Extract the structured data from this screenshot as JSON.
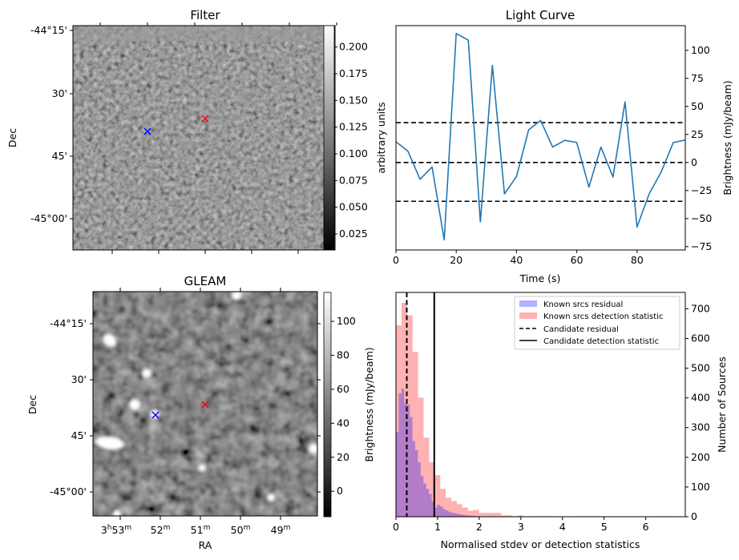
{
  "figure": {
    "panels": {
      "filter": {
        "title": "Filter",
        "ylabel": "Dec",
        "dec_ticks": [
          "-44°15'",
          "30'",
          "45'",
          "-45°00'"
        ],
        "colorbar": {
          "label": "arbitrary units",
          "ticks": [
            "0.025",
            "0.050",
            "0.075",
            "0.100",
            "0.125",
            "0.150",
            "0.175",
            "0.200"
          ],
          "range": [
            0.01,
            0.22
          ]
        },
        "markers": [
          {
            "name": "candidate",
            "color": "#ff0000",
            "symbol": "x"
          },
          {
            "name": "known-source",
            "color": "#0000ff",
            "symbol": "x"
          }
        ]
      },
      "gleam": {
        "title": "GLEAM",
        "ylabel": "Dec",
        "xlabel": "RA",
        "dec_ticks": [
          "-44°15'",
          "30'",
          "45'",
          "-45°00'"
        ],
        "ra_ticks": [
          {
            "h": "3",
            "m": "53"
          },
          {
            "h": "",
            "m": "52"
          },
          {
            "h": "",
            "m": "51"
          },
          {
            "h": "",
            "m": "50"
          },
          {
            "h": "",
            "m": "49"
          }
        ],
        "colorbar": {
          "label": "Brightness (mJy/beam)",
          "ticks": [
            "0",
            "20",
            "40",
            "60",
            "80",
            "100"
          ],
          "range": [
            -15,
            117
          ]
        },
        "markers": [
          {
            "name": "candidate",
            "color": "#ff0000",
            "symbol": "x"
          },
          {
            "name": "known-source",
            "color": "#0000ff",
            "symbol": "x"
          }
        ]
      }
    }
  },
  "chart_data": [
    {
      "type": "line",
      "title": "Light Curve",
      "xlabel": "Time (s)",
      "ylabel": "Brightness (mJy/beam)",
      "ylabel_side": "right",
      "xlim": [
        0,
        96
      ],
      "ylim": [
        -78,
        122
      ],
      "xticks": [
        0,
        20,
        40,
        60,
        80
      ],
      "yticks": [
        -75,
        -50,
        -25,
        0,
        25,
        50,
        75,
        100
      ],
      "grid": false,
      "color": "#1f77b4",
      "x": [
        0,
        4,
        8,
        12,
        16,
        20,
        24,
        28,
        32,
        36,
        40,
        44,
        48,
        52,
        56,
        60,
        64,
        68,
        72,
        76,
        80,
        84,
        88,
        92,
        96
      ],
      "y": [
        18.5,
        10,
        -15,
        -4,
        -69,
        115,
        109,
        -53,
        86.5,
        -28,
        -12.5,
        29,
        37.5,
        13.7,
        19.7,
        17.8,
        -22,
        13.7,
        -13,
        54,
        -57.6,
        -28,
        -8.5,
        17.8,
        20
      ],
      "hlines": [
        {
          "y": 35.5,
          "style": "dashed",
          "color": "#000000"
        },
        {
          "y": 0,
          "style": "dashed",
          "color": "#000000"
        },
        {
          "y": -34.6,
          "style": "dashed",
          "color": "#000000"
        }
      ]
    },
    {
      "type": "bar",
      "subtype": "histogram",
      "xlabel": "Normalised stdev or detection statistics",
      "ylabel": "Number of Sources",
      "ylabel_side": "right",
      "xlim": [
        0,
        6.95
      ],
      "ylim": [
        0,
        755
      ],
      "xticks": [
        0,
        1,
        2,
        3,
        4,
        5,
        6
      ],
      "yticks": [
        0,
        100,
        200,
        300,
        400,
        500,
        600,
        700
      ],
      "legend_position": "top-right",
      "series": [
        {
          "name": "Known srcs residual",
          "color": "#0000ff",
          "alpha": 0.3,
          "bin_start": 0,
          "bin_width": 0.066,
          "values": [
            285,
            415,
            431,
            381,
            377,
            336,
            255,
            224,
            183,
            138,
            112,
            94,
            76,
            51,
            31,
            40,
            35,
            26,
            22,
            17,
            14,
            12,
            10,
            8,
            7,
            5,
            4,
            3,
            3,
            2
          ]
        },
        {
          "name": "Known srcs detection statistic",
          "color": "#ff0000",
          "alpha": 0.3,
          "bin_start": 0,
          "bin_width": 0.133,
          "values": [
            644,
            720,
            678,
            555,
            401,
            266,
            183,
            140,
            94,
            64,
            53,
            42,
            31,
            20,
            23,
            13,
            13,
            13,
            13,
            5,
            5,
            2,
            5,
            0,
            2,
            2,
            2,
            2,
            2,
            0,
            0,
            0,
            2,
            2,
            2,
            2,
            2,
            2,
            0,
            2,
            0,
            0,
            0,
            0,
            0,
            0,
            0,
            2,
            0,
            2
          ]
        }
      ],
      "vlines": [
        {
          "name": "Candidate residual",
          "x": 0.26,
          "style": "dashed",
          "color": "#000000"
        },
        {
          "name": "Candidate detection statistic",
          "x": 0.92,
          "style": "solid",
          "color": "#000000"
        }
      ]
    }
  ]
}
